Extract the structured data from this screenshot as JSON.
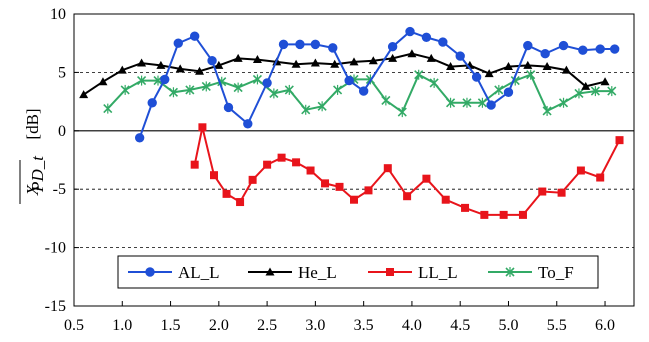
{
  "chart_data": {
    "type": "line",
    "xlim": [
      0.5,
      6.3
    ],
    "ylim": [
      -15,
      10
    ],
    "xticks": [
      "0.5",
      "1.0",
      "1.5",
      "2.0",
      "2.5",
      "3.0",
      "3.5",
      "4.0",
      "4.5",
      "5.0",
      "5.5",
      "6.0"
    ],
    "yticks": [
      "-15",
      "-10",
      "-5",
      "0",
      "5",
      "10"
    ],
    "ylabel_main": "X",
    "ylabel_sub": "PD_t",
    "ylabel_unit": "[dB]",
    "gridlines": "horizontal dashed at 5, -5, -10",
    "zero_line": true,
    "legend_position": "bottom",
    "series": [
      {
        "name": "AL_L",
        "color": "#1f4fd6",
        "marker": "circle",
        "x": [
          1.18,
          1.31,
          1.44,
          1.58,
          1.75,
          1.93,
          2.1,
          2.3,
          2.5,
          2.67,
          2.84,
          3.0,
          3.18,
          3.35,
          3.5,
          3.8,
          3.98,
          4.15,
          4.32,
          4.5,
          4.67,
          4.82,
          5.0,
          5.2,
          5.38,
          5.57,
          5.77,
          5.95,
          6.1
        ],
        "y": [
          -0.6,
          2.4,
          4.4,
          7.5,
          8.1,
          6.0,
          2.0,
          0.6,
          4.1,
          7.4,
          7.4,
          7.4,
          7.1,
          4.3,
          3.4,
          7.2,
          8.5,
          8.0,
          7.6,
          6.4,
          4.6,
          2.2,
          3.3,
          7.3,
          6.6,
          7.3,
          6.9,
          7.0,
          7.0
        ]
      },
      {
        "name": "He_L",
        "color": "#000000",
        "marker": "triangle",
        "x": [
          0.6,
          0.8,
          1.0,
          1.2,
          1.4,
          1.6,
          1.8,
          2.0,
          2.2,
          2.4,
          2.6,
          2.8,
          3.0,
          3.2,
          3.4,
          3.6,
          3.8,
          4.0,
          4.2,
          4.4,
          4.6,
          4.8,
          5.0,
          5.2,
          5.4,
          5.6,
          5.8,
          6.0
        ],
        "y": [
          3.1,
          4.2,
          5.2,
          5.8,
          5.6,
          5.3,
          5.1,
          5.6,
          6.2,
          6.1,
          5.9,
          5.7,
          5.8,
          5.7,
          5.9,
          6.0,
          6.2,
          6.6,
          6.2,
          5.5,
          5.6,
          4.9,
          5.5,
          5.6,
          5.5,
          5.2,
          3.8,
          4.2
        ]
      },
      {
        "name": "LL_L",
        "color": "#e8141b",
        "marker": "square",
        "x": [
          1.75,
          1.83,
          1.95,
          2.08,
          2.22,
          2.35,
          2.5,
          2.65,
          2.8,
          2.95,
          3.1,
          3.25,
          3.4,
          3.55,
          3.75,
          3.95,
          4.15,
          4.35,
          4.55,
          4.75,
          4.95,
          5.15,
          5.35,
          5.55,
          5.75,
          5.95,
          6.15
        ],
        "y": [
          -2.9,
          0.3,
          -3.8,
          -5.4,
          -6.1,
          -4.2,
          -2.9,
          -2.3,
          -2.7,
          -3.4,
          -4.5,
          -4.8,
          -5.9,
          -5.1,
          -3.2,
          -5.6,
          -4.1,
          -5.9,
          -6.6,
          -7.2,
          -7.2,
          -7.2,
          -5.2,
          -5.3,
          -3.4,
          -4.0,
          -0.8
        ]
      },
      {
        "name": "To_F",
        "color": "#33aa66",
        "marker": "x",
        "x": [
          0.85,
          1.03,
          1.2,
          1.37,
          1.53,
          1.7,
          1.87,
          2.03,
          2.2,
          2.4,
          2.57,
          2.73,
          2.9,
          3.07,
          3.23,
          3.4,
          3.57,
          3.73,
          3.9,
          4.07,
          4.23,
          4.4,
          4.57,
          4.73,
          4.9,
          5.07,
          5.23,
          5.4,
          5.57,
          5.73,
          5.9,
          6.07
        ],
        "y": [
          1.9,
          3.5,
          4.3,
          4.3,
          3.3,
          3.5,
          3.8,
          4.2,
          3.7,
          4.4,
          3.2,
          3.5,
          1.8,
          2.1,
          3.5,
          4.4,
          4.4,
          2.6,
          1.6,
          4.8,
          4.1,
          2.4,
          2.4,
          2.4,
          3.5,
          4.3,
          4.8,
          1.7,
          2.4,
          3.2,
          3.4,
          3.4
        ]
      }
    ]
  }
}
